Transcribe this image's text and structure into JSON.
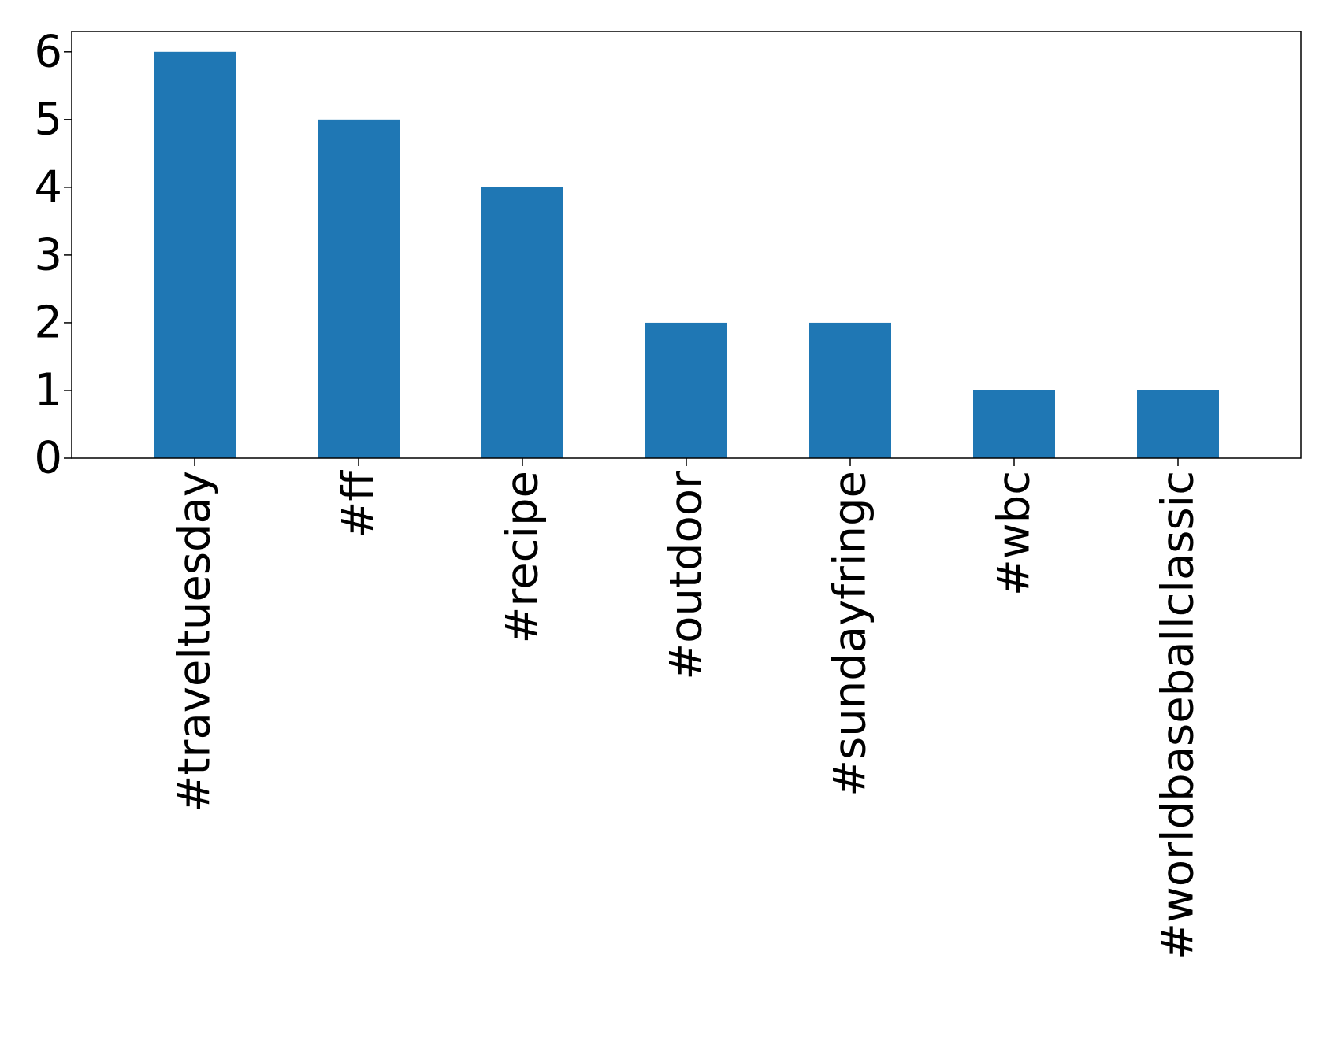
{
  "chart_data": {
    "type": "bar",
    "categories": [
      "#traveltuesday",
      "#ff",
      "#recipe",
      "#outdoor",
      "#sundayfringe",
      "#wbc",
      "#worldbaseballclassic"
    ],
    "values": [
      6,
      5,
      4,
      2,
      2,
      1,
      1
    ],
    "title": "",
    "xlabel": "",
    "ylabel": "",
    "ylim": [
      0,
      6.3
    ],
    "yticks": [
      0,
      1,
      2,
      3,
      4,
      5,
      6
    ],
    "grid": false,
    "legend": "none",
    "bar_color": "#1f77b4"
  }
}
